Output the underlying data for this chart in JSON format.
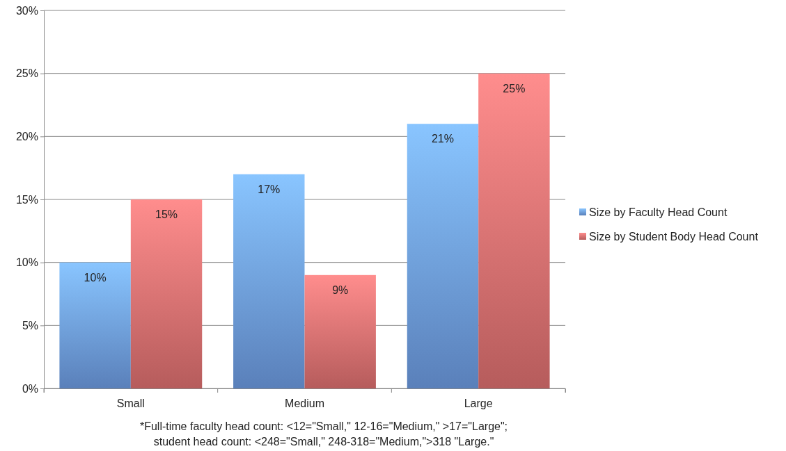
{
  "chart_data": {
    "type": "bar",
    "categories": [
      "Small",
      "Medium",
      "Large"
    ],
    "series": [
      {
        "name": "Size by Faculty Head Count",
        "color": "#6f9fe6",
        "values": [
          10,
          17,
          21
        ],
        "value_labels": [
          "10%",
          "17%",
          "21%"
        ]
      },
      {
        "name": "Size by Student Body Head Count",
        "color": "#e27272",
        "values": [
          15,
          9,
          25
        ],
        "value_labels": [
          "15%",
          "9%",
          "25%"
        ]
      }
    ],
    "ylim": [
      0,
      30
    ],
    "yticks": [
      {
        "value": 0,
        "label": "0%"
      },
      {
        "value": 5,
        "label": "5%"
      },
      {
        "value": 10,
        "label": "10%"
      },
      {
        "value": 15,
        "label": "15%"
      },
      {
        "value": 20,
        "label": "20%"
      },
      {
        "value": 25,
        "label": "25%"
      },
      {
        "value": 30,
        "label": "30%"
      }
    ],
    "grid": "y",
    "legend": "right",
    "annotations": [
      "*Full-time faculty head count: <12=\"Small,\" 12-16=\"Medium,\" >17=\"Large\";",
      "student head count: <248=\"Small,\" 248-318=\"Medium,\">318 \"Large.\""
    ]
  }
}
